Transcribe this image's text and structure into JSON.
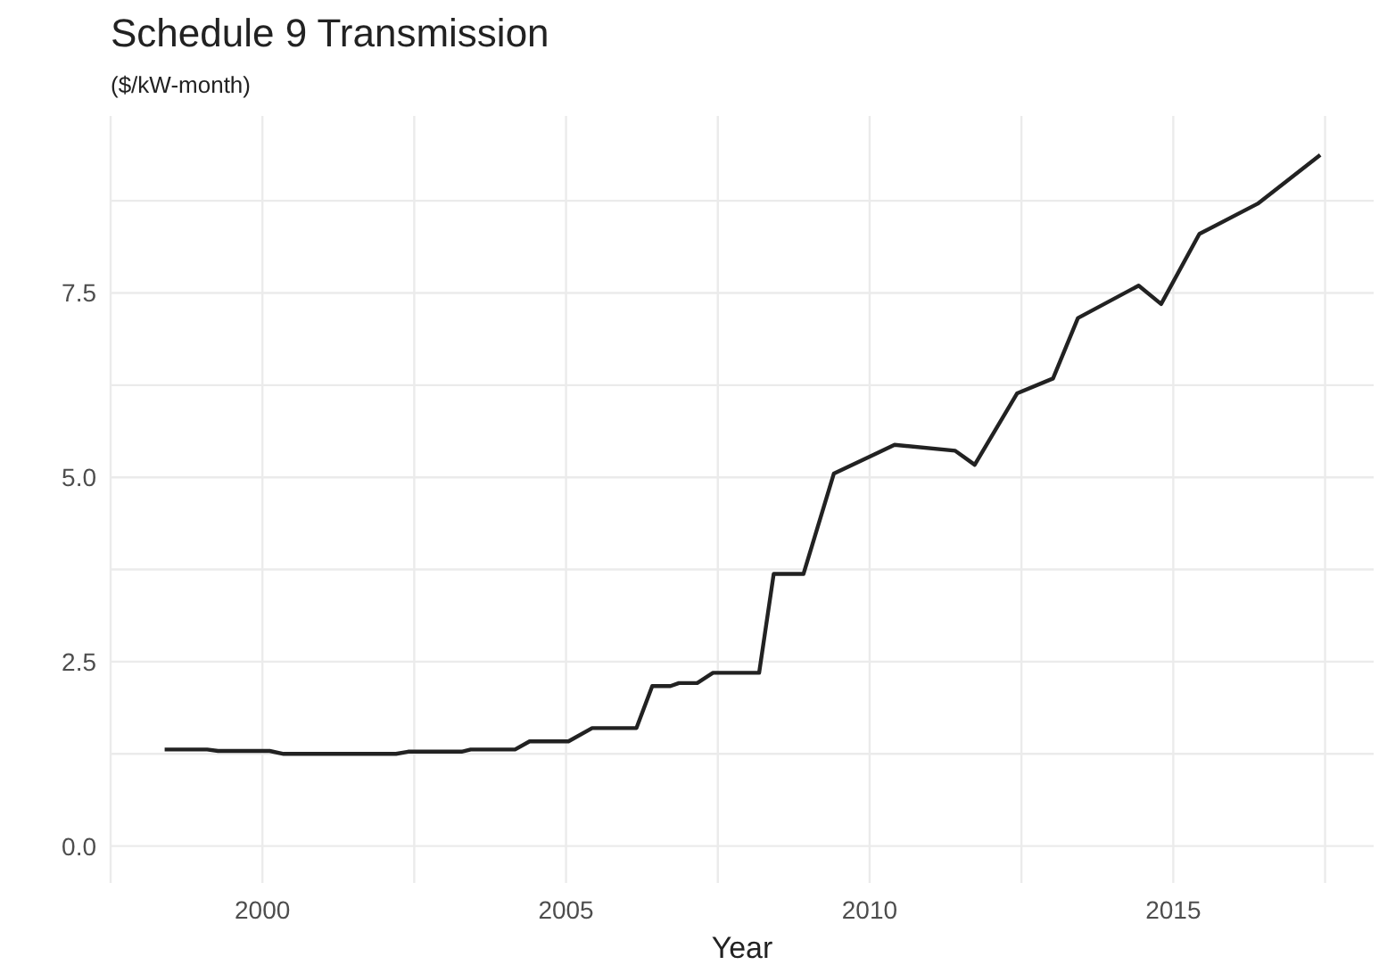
{
  "chart_data": {
    "type": "line",
    "title": "Schedule 9 Transmission",
    "subtitle": "($/kW-month)",
    "xlabel": "Year",
    "x": [
      1998.39,
      1999.09,
      1999.27,
      2000.12,
      2000.35,
      2002.2,
      2002.4,
      2003.28,
      2003.43,
      2004.16,
      2004.4,
      2005.04,
      2005.43,
      2006.16,
      2006.42,
      2006.72,
      2006.86,
      2007.16,
      2007.42,
      2008.18,
      2008.42,
      2008.91,
      2009.41,
      2010.41,
      2011.41,
      2011.73,
      2012.43,
      2013.02,
      2013.43,
      2014.43,
      2014.8,
      2015.43,
      2016.39,
      2017.42
    ],
    "series": [
      {
        "color": "#222222",
        "values": [
          1.31,
          1.31,
          1.29,
          1.29,
          1.25,
          1.25,
          1.28,
          1.28,
          1.31,
          1.31,
          1.42,
          1.42,
          1.6,
          1.6,
          2.17,
          2.17,
          2.21,
          2.21,
          2.35,
          2.35,
          3.69,
          3.69,
          5.05,
          5.44,
          5.36,
          5.17,
          6.14,
          6.34,
          7.16,
          7.6,
          7.35,
          8.3,
          8.71,
          9.37
        ]
      }
    ],
    "xlim": [
      1997.5,
      2018.3
    ],
    "xticks": [
      {
        "value": 1997.5,
        "label": null
      },
      2000,
      {
        "value": 2002.5,
        "label": null
      },
      2005,
      {
        "value": 2007.5,
        "label": null
      },
      2010,
      {
        "value": 2012.5,
        "label": null
      },
      2015,
      {
        "value": 2017.5,
        "label": null
      }
    ],
    "ylim": [
      -0.5,
      9.9
    ],
    "yticks": [
      {
        "value": 0,
        "label": "0.0"
      },
      {
        "value": 1.25,
        "label": null
      },
      {
        "value": 2.5,
        "label": "2.5"
      },
      {
        "value": 3.75,
        "label": null
      },
      {
        "value": 5,
        "label": "5.0"
      },
      {
        "value": 6.25,
        "label": null
      },
      {
        "value": 7.5,
        "label": "7.5"
      },
      {
        "value": 8.75,
        "label": null
      }
    ],
    "grid": true,
    "legend": false,
    "marker": "none",
    "line_style": "solid"
  }
}
